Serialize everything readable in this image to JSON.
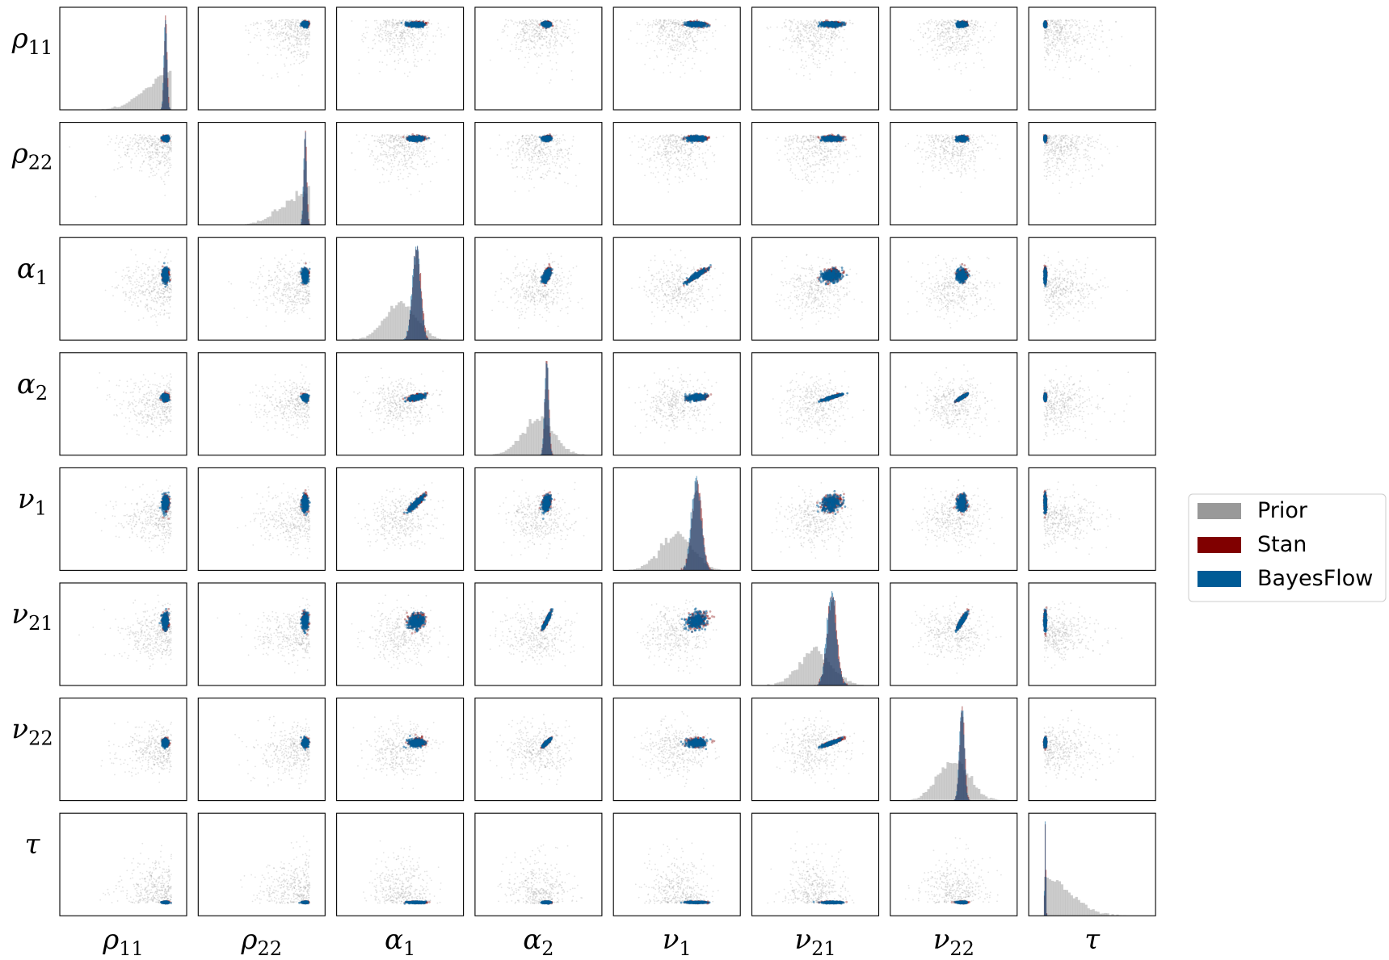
{
  "chart_data": {
    "type": "pair-plot",
    "panel_types": {
      "diagonal": "histogram",
      "off_diagonal": "scatter"
    },
    "parameters": [
      {
        "key": "rho11",
        "base": "ρ",
        "sub": "11",
        "prior_range": [
          -3,
          1
        ],
        "posterior_center": 0.75,
        "posterior_sd": 0.06
      },
      {
        "key": "rho22",
        "base": "ρ",
        "sub": "22",
        "prior_range": [
          -3,
          1
        ],
        "posterior_center": 0.8,
        "posterior_sd": 0.06
      },
      {
        "key": "alpha1",
        "base": "α",
        "sub": "1",
        "prior_range": [
          -3,
          3
        ],
        "posterior_center": 1.0,
        "posterior_sd": 0.25
      },
      {
        "key": "alpha2",
        "base": "α",
        "sub": "2",
        "prior_range": [
          -3,
          3
        ],
        "posterior_center": 0.5,
        "posterior_sd": 0.12
      },
      {
        "key": "nu1",
        "base": "ν",
        "sub": "1",
        "prior_range": [
          -3,
          3
        ],
        "posterior_center": 1.2,
        "posterior_sd": 0.3
      },
      {
        "key": "nu21",
        "base": "ν",
        "sub": "21",
        "prior_range": [
          -3,
          3
        ],
        "posterior_center": 1.0,
        "posterior_sd": 0.3
      },
      {
        "key": "nu22",
        "base": "ν",
        "sub": "22",
        "prior_range": [
          -3,
          3
        ],
        "posterior_center": 0.5,
        "posterior_sd": 0.15
      },
      {
        "key": "tau",
        "base": "τ",
        "sub": "",
        "prior_range": [
          0,
          6
        ],
        "posterior_center": 0.08,
        "posterior_sd": 0.03
      }
    ],
    "series": [
      {
        "name": "Prior",
        "color": "#999999"
      },
      {
        "name": "Stan",
        "color": "#800000"
      },
      {
        "name": "BayesFlow",
        "color": "#005b96"
      }
    ],
    "legend": {
      "placement": "right"
    },
    "grid": false,
    "ticks": "none"
  }
}
